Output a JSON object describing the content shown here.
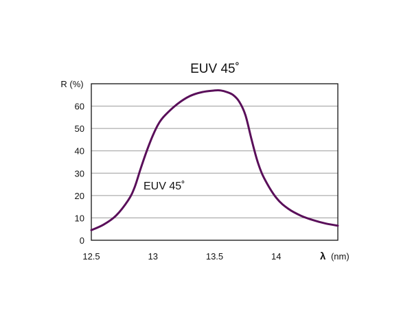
{
  "chart_data": {
    "type": "line",
    "title": "EUV 45˚",
    "ylabel": "R (%)",
    "xlabel_symbol": "λ",
    "xlabel_unit": "(nm)",
    "xlim": [
      12.5,
      14.5
    ],
    "ylim": [
      0,
      70
    ],
    "x_ticks": [
      12.5,
      13,
      13.5,
      14
    ],
    "x_tick_labels": [
      "12.5",
      "13",
      "13.5",
      "14"
    ],
    "y_ticks": [
      0,
      10,
      20,
      30,
      40,
      50,
      60
    ],
    "y_tick_labels": [
      "0",
      "10",
      "20",
      "30",
      "40",
      "50",
      "60"
    ],
    "grid": "horizontal",
    "series": [
      {
        "name": "EUV 45˚",
        "color": "#5a0f5a",
        "x": [
          12.5,
          12.6,
          12.7,
          12.8,
          12.85,
          12.9,
          12.95,
          13.0,
          13.05,
          13.1,
          13.2,
          13.3,
          13.4,
          13.5,
          13.55,
          13.6,
          13.65,
          13.7,
          13.75,
          13.8,
          13.85,
          13.9,
          14.0,
          14.1,
          14.2,
          14.3,
          14.4,
          14.5
        ],
        "y": [
          4.5,
          7,
          11,
          18,
          23.5,
          32,
          40,
          47,
          52.5,
          56,
          61,
          64.5,
          66.3,
          67,
          67,
          66.3,
          65,
          62,
          56,
          45,
          35,
          28,
          19,
          14,
          11,
          9,
          7.5,
          6.5
        ]
      }
    ]
  }
}
